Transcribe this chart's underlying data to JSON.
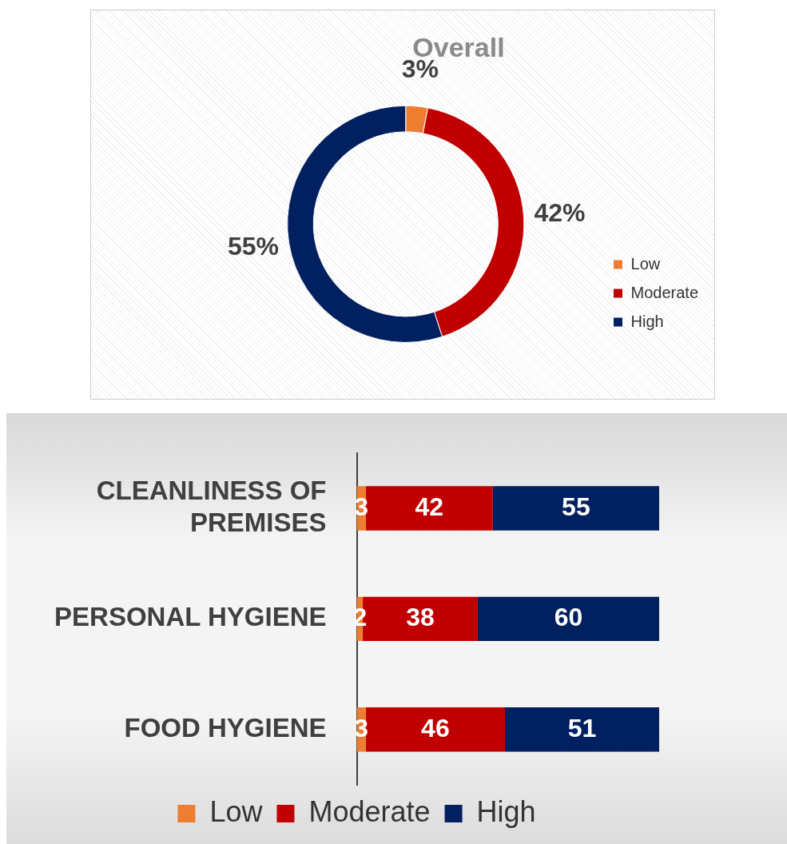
{
  "chart_data": [
    {
      "type": "donut",
      "title": "Overall",
      "categories": [
        "Low",
        "Moderate",
        "High"
      ],
      "values": [
        3,
        42,
        55
      ],
      "colors": [
        "#ed7d31",
        "#c00000",
        "#002060"
      ],
      "value_labels": [
        "3%",
        "42%",
        "55%"
      ],
      "legend": "bottom right"
    },
    {
      "type": "bar",
      "orientation": "horizontal",
      "stacked": true,
      "categories": [
        "CLEANLINESS OF PREMISES",
        "PERSONAL HYGIENE",
        "FOOD HYGIENE"
      ],
      "series": [
        {
          "name": "Low",
          "color": "#ed7d31",
          "values": [
            3,
            2,
            3
          ]
        },
        {
          "name": "Moderate",
          "color": "#c00000",
          "values": [
            42,
            38,
            46
          ]
        },
        {
          "name": "High",
          "color": "#002060",
          "values": [
            55,
            60,
            51
          ]
        }
      ],
      "tick_labels": "y",
      "data_labels": true,
      "legend": "bottom"
    }
  ]
}
